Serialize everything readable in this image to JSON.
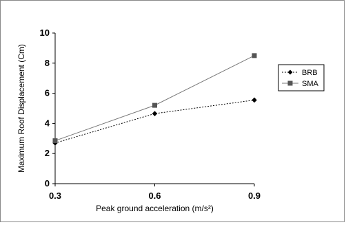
{
  "chart_data": {
    "type": "line",
    "title": "",
    "xlabel": "Peak ground acceleration  (m/s²)",
    "ylabel": "Maximum Roof Displacement (Cm)",
    "x": [
      0.3,
      0.6,
      0.9
    ],
    "x_tick_labels": [
      "0.3",
      "0.6",
      "0.9"
    ],
    "xlim": [
      0.3,
      0.9
    ],
    "ylim": [
      0,
      10
    ],
    "y_ticks": [
      0,
      2,
      4,
      6,
      8,
      10
    ],
    "grid": false,
    "legend_position": "right",
    "series": [
      {
        "name": "BRB",
        "values": [
          2.7,
          4.65,
          5.55
        ],
        "marker": "diamond",
        "line_style": "dotted",
        "color": "#000000"
      },
      {
        "name": "SMA",
        "values": [
          2.85,
          5.2,
          8.5
        ],
        "marker": "square",
        "line_style": "solid",
        "color": "#555555"
      }
    ]
  }
}
